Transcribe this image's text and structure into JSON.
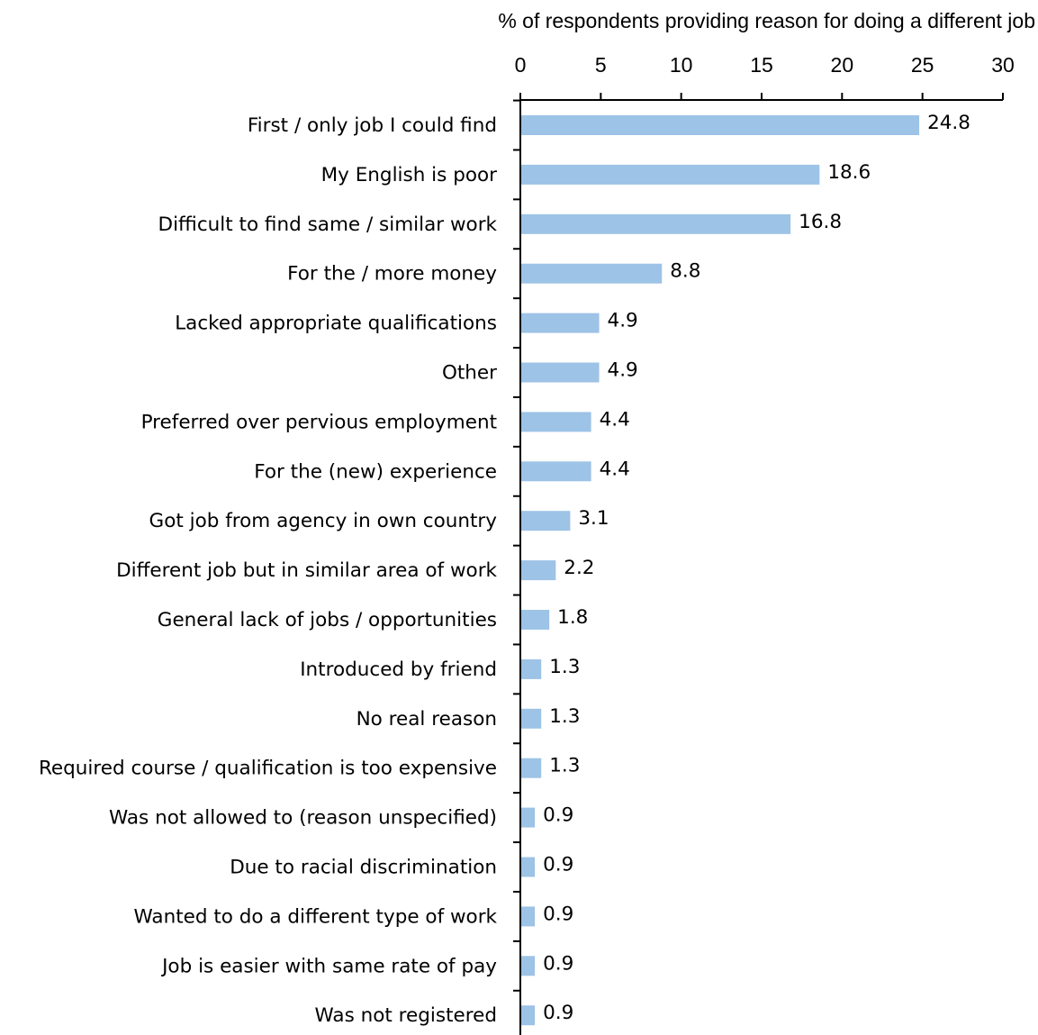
{
  "chart_data": {
    "type": "bar",
    "orientation": "horizontal",
    "title": "",
    "xlabel": "% of respondents providing reason for doing a different job",
    "ylabel": "",
    "xlabel_position": "top",
    "xlim": [
      0,
      30
    ],
    "xticks": [
      "0",
      "5",
      "10",
      "15",
      "20",
      "25",
      "30"
    ],
    "grid": false,
    "legend": "none",
    "bar_color": "#9DC3E6",
    "categories": [
      "First / only job I could find",
      "My English is poor ",
      "Difficult to find same / similar work",
      "For the / more money",
      "Lacked appropriate qualifications",
      "Other",
      "Preferred over pervious employment",
      "For the (new) experience",
      "Got job from agency in own country",
      "Different job but in similar area of work",
      "General lack of jobs / opportunities",
      "Introduced by friend",
      "No real reason",
      "Required course / qualification is too expensive",
      "Was not allowed to (reason unspecified)",
      "Due to racial discrimination ",
      "Wanted to do a different type of work",
      "Job is easier with same rate of pay",
      "Was not registered"
    ],
    "values": [
      24.8,
      18.6,
      16.8,
      8.8,
      4.9,
      4.9,
      4.4,
      4.4,
      3.1,
      2.2,
      1.8,
      1.3,
      1.3,
      1.3,
      0.9,
      0.9,
      0.9,
      0.9,
      0.9
    ],
    "data_labels": [
      "24.8",
      "18.6",
      "16.8",
      "8.8",
      "4.9",
      "4.9",
      "4.4",
      "4.4",
      "3.1",
      "2.2",
      "1.8",
      "1.3",
      "1.3",
      "1.3",
      "0.9",
      "0.9",
      "0.9",
      "0.9",
      "0.9"
    ]
  }
}
